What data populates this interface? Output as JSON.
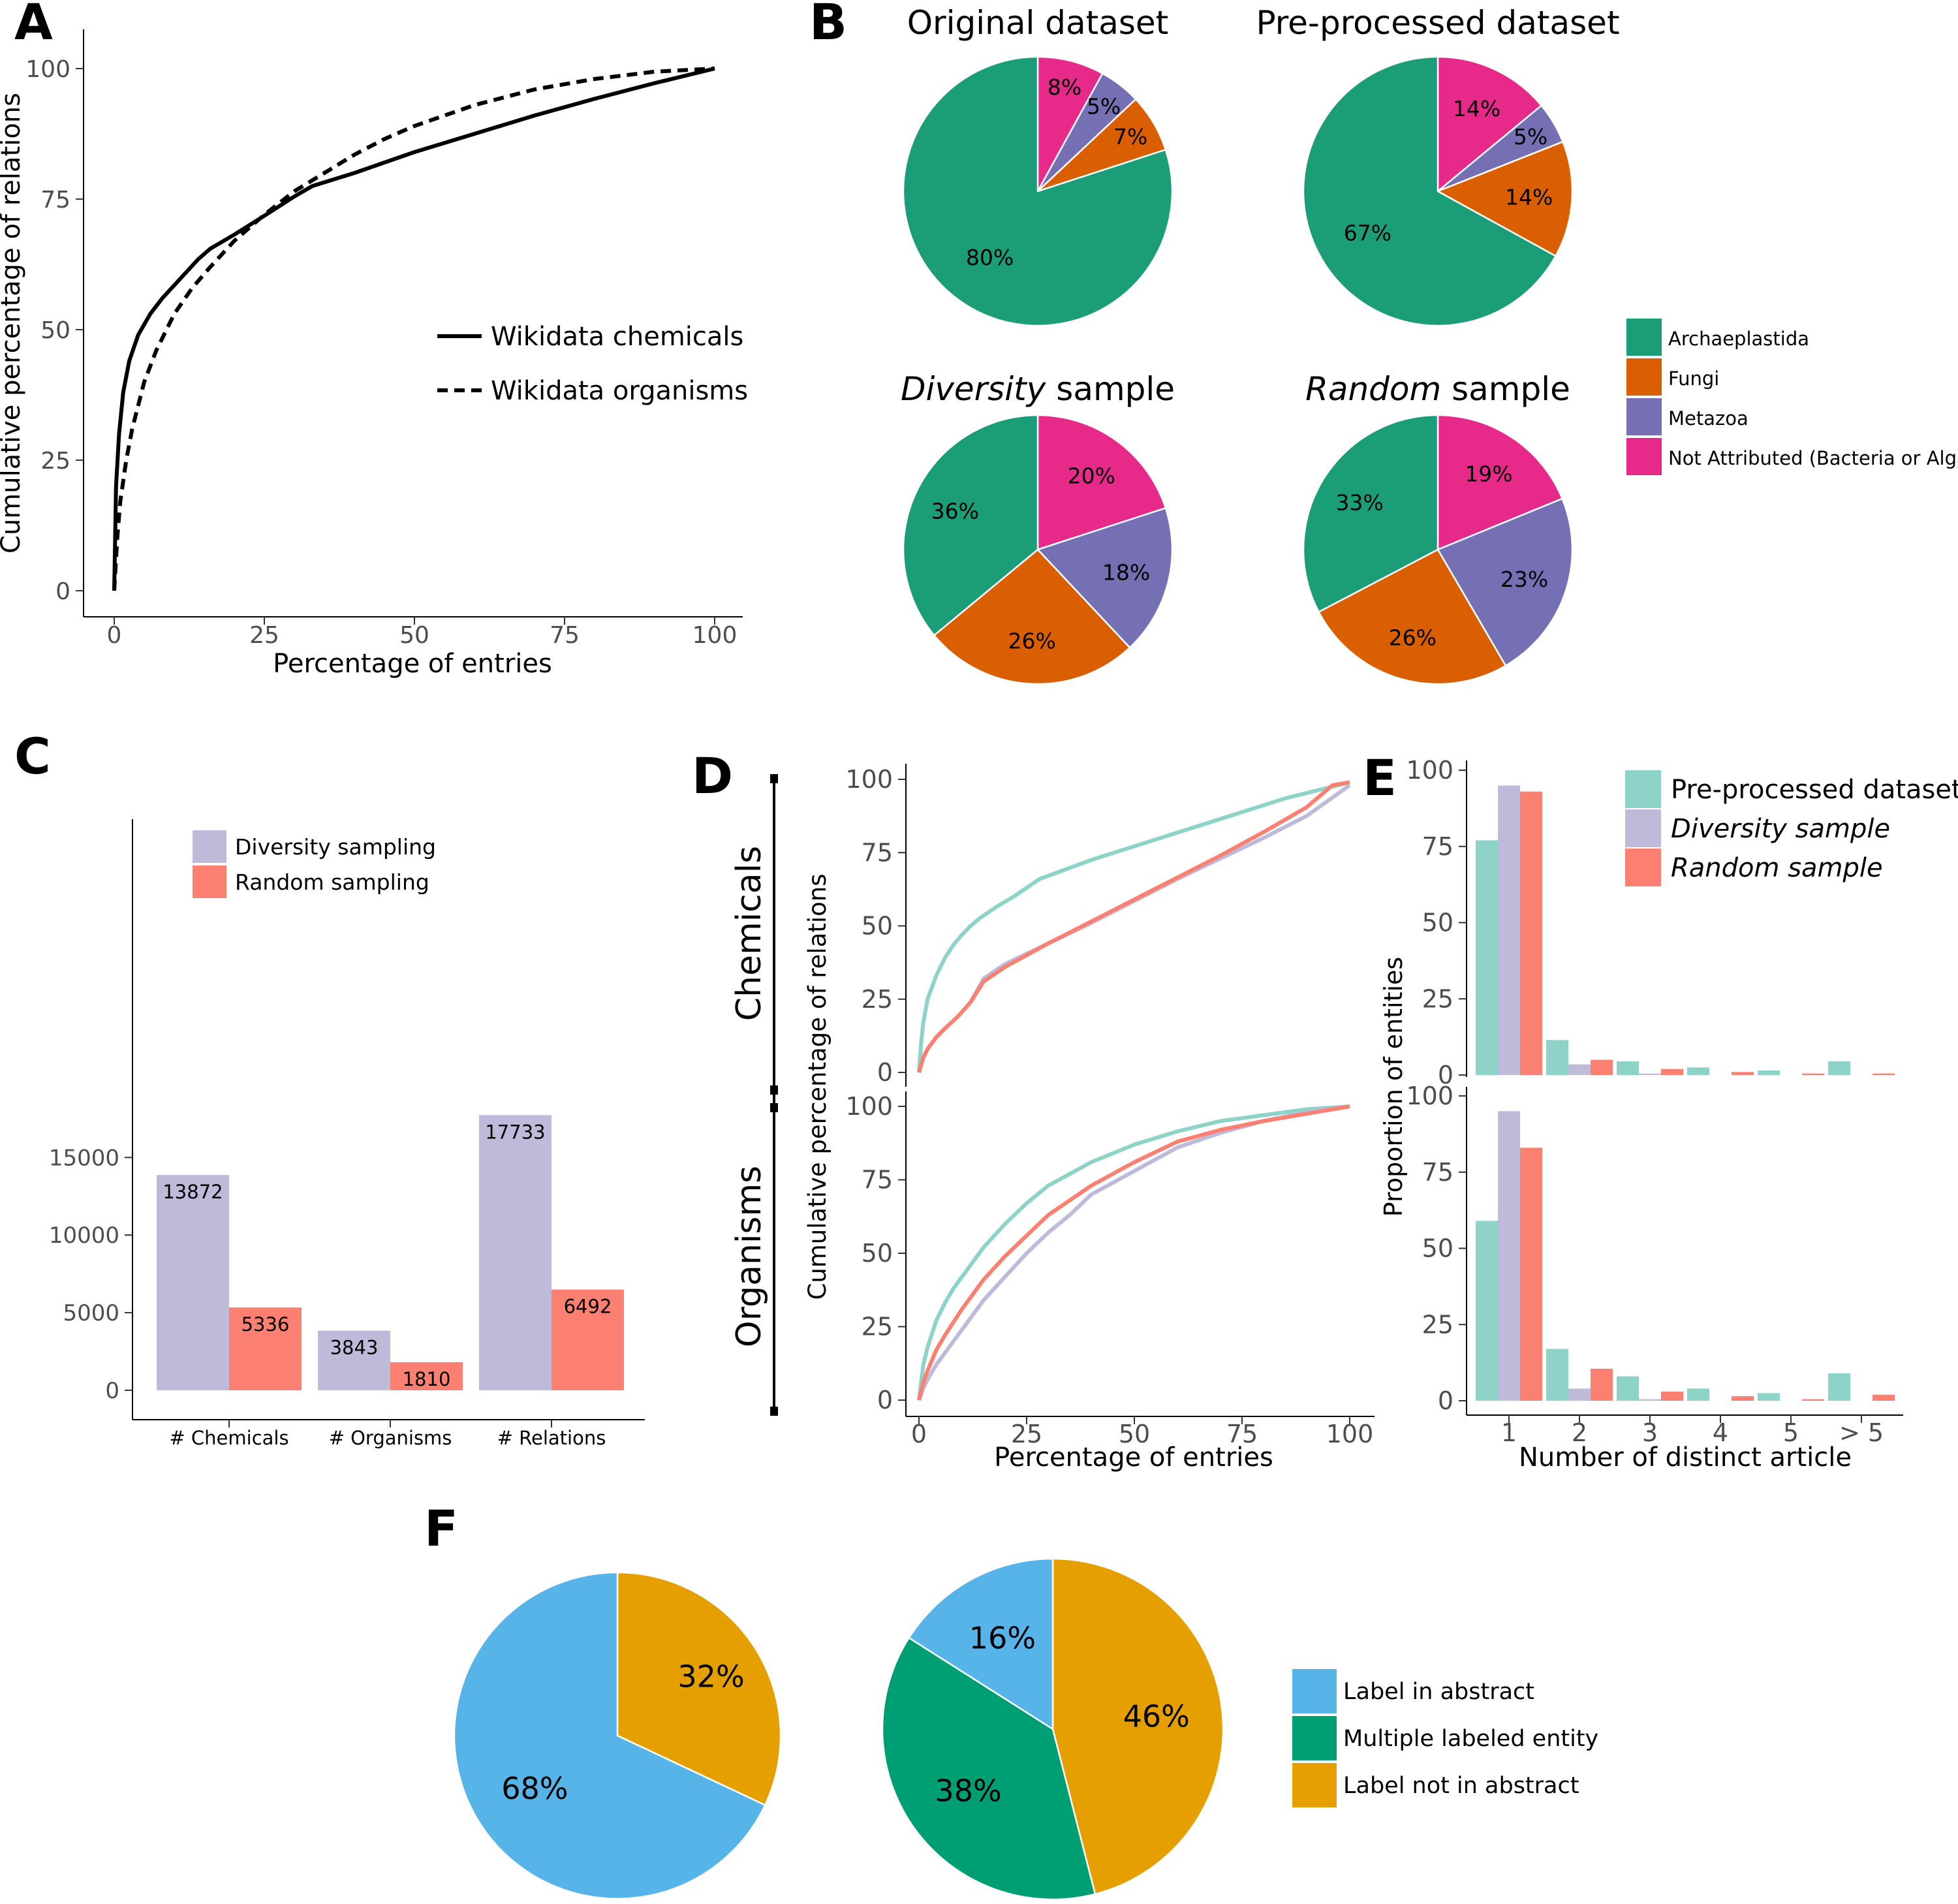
{
  "colors": {
    "archaeplastida": "#1b9e77",
    "fungi": "#d95f02",
    "metazoa": "#7570b3",
    "not_attributed": "#e7298a",
    "diversity": "#bebada",
    "random": "#fb8072",
    "preprocessed": "#8dd3c7",
    "label_in": "#56b4e9",
    "multiple": "#009e73",
    "label_not_in": "#e69f00"
  },
  "panels": {
    "A": "A",
    "B": "B",
    "C": "C",
    "D": "D",
    "E": "E",
    "F": "F"
  },
  "chart_data": [
    {
      "id": "A",
      "type": "line",
      "xlabel": "Percentage of entries",
      "ylabel": "Cumulative percentage of relations",
      "xlim": [
        0,
        100
      ],
      "ylim": [
        0,
        100
      ],
      "x_ticks": [
        "0",
        "25",
        "50",
        "75",
        "100"
      ],
      "y_ticks": [
        "0",
        "25",
        "50",
        "75",
        "100"
      ],
      "legend": [
        "Wikidata chemicals",
        "Wikidata organisms"
      ],
      "series": [
        {
          "name": "Wikidata chemicals",
          "style": "solid",
          "points": [
            [
              0,
              0
            ],
            [
              0.3,
              20
            ],
            [
              0.8,
              30
            ],
            [
              1.5,
              38
            ],
            [
              2.5,
              44
            ],
            [
              4,
              49
            ],
            [
              6,
              53
            ],
            [
              8,
              56
            ],
            [
              10,
              58.5
            ],
            [
              12,
              61
            ],
            [
              14,
              63.5
            ],
            [
              16,
              65.5
            ],
            [
              20,
              68.2
            ],
            [
              25,
              71.8
            ],
            [
              30,
              75.5
            ],
            [
              33,
              77.5
            ],
            [
              40,
              80
            ],
            [
              50,
              84
            ],
            [
              60,
              87.5
            ],
            [
              70,
              91
            ],
            [
              80,
              94.2
            ],
            [
              90,
              97.2
            ],
            [
              100,
              100
            ]
          ]
        },
        {
          "name": "Wikidata organisms",
          "style": "dashed",
          "points": [
            [
              0,
              0
            ],
            [
              0.5,
              10
            ],
            [
              1,
              17
            ],
            [
              2,
              25
            ],
            [
              3,
              31
            ],
            [
              5,
              40
            ],
            [
              7,
              46
            ],
            [
              10,
              53
            ],
            [
              13,
              58
            ],
            [
              16,
              62
            ],
            [
              20,
              67
            ],
            [
              25,
              72
            ],
            [
              30,
              76.5
            ],
            [
              35,
              80
            ],
            [
              40,
              83.5
            ],
            [
              45,
              86.5
            ],
            [
              50,
              89
            ],
            [
              60,
              93
            ],
            [
              70,
              96
            ],
            [
              80,
              98
            ],
            [
              90,
              99.4
            ],
            [
              100,
              100
            ]
          ]
        }
      ]
    },
    {
      "id": "B",
      "type": "pie",
      "legend": [
        "Archaeplastida",
        "Fungi",
        "Metazoa",
        "Not Attributed (Bacteria or Algae)"
      ],
      "pies": [
        {
          "title": "Original dataset",
          "title_italic": "",
          "slices": [
            {
              "label": "Not Attributed",
              "value": 8,
              "text": "8%"
            },
            {
              "label": "Metazoa",
              "value": 5,
              "text": "5%"
            },
            {
              "label": "Fungi",
              "value": 7,
              "text": "7%"
            },
            {
              "label": "Archaeplastida",
              "value": 80,
              "text": "80%"
            }
          ]
        },
        {
          "title": "Pre-processed dataset",
          "title_italic": "",
          "slices": [
            {
              "label": "Not Attributed",
              "value": 14,
              "text": "14%"
            },
            {
              "label": "Metazoa",
              "value": 5,
              "text": "5%"
            },
            {
              "label": "Fungi",
              "value": 14,
              "text": "14%"
            },
            {
              "label": "Archaeplastida",
              "value": 67,
              "text": "67%"
            }
          ]
        },
        {
          "title": " sample",
          "title_italic": "Diversity",
          "slices": [
            {
              "label": "Not Attributed",
              "value": 20,
              "text": "20%"
            },
            {
              "label": "Metazoa",
              "value": 18,
              "text": "18%"
            },
            {
              "label": "Fungi",
              "value": 26,
              "text": "26%"
            },
            {
              "label": "Archaeplastida",
              "value": 36,
              "text": "36%"
            }
          ]
        },
        {
          "title": " sample",
          "title_italic": "Random",
          "slices": [
            {
              "label": "Not Attributed",
              "value": 19,
              "text": "19%"
            },
            {
              "label": "Metazoa",
              "value": 23,
              "text": "23%"
            },
            {
              "label": "Fungi",
              "value": 26,
              "text": "26%"
            },
            {
              "label": "Archaeplastida",
              "value": 33,
              "text": "33%"
            }
          ]
        }
      ]
    },
    {
      "id": "C",
      "type": "bar",
      "categories": [
        "# Chemicals",
        "# Organisms",
        "# Relations"
      ],
      "ylim": [
        0,
        18000
      ],
      "y_ticks": [
        "0",
        "5000",
        "10000",
        "15000"
      ],
      "legend": [
        "Diversity sampling",
        "Random sampling"
      ],
      "series": [
        {
          "name": "Diversity sampling",
          "values": [
            13872,
            3843,
            17733
          ],
          "labels": [
            "13872",
            "3843",
            "17733"
          ]
        },
        {
          "name": "Random sampling",
          "values": [
            5336,
            1810,
            6492
          ],
          "labels": [
            "5336",
            "1810",
            "6492"
          ]
        }
      ]
    },
    {
      "id": "D",
      "type": "line",
      "xlabel": "Percentage of entries",
      "ylabel": "Cumulative percentage of relations",
      "facets": [
        "Chemicals",
        "Organisms"
      ],
      "xlim": [
        0,
        100
      ],
      "ylim": [
        0,
        100
      ],
      "x_ticks": [
        "0",
        "25",
        "50",
        "75",
        "100"
      ],
      "y_ticks": [
        "0",
        "25",
        "50",
        "75",
        "100"
      ],
      "chemicals": [
        {
          "name": "Pre-processed dataset",
          "points": [
            [
              0,
              0
            ],
            [
              0.5,
              10
            ],
            [
              1,
              17
            ],
            [
              2,
              25
            ],
            [
              4,
              33
            ],
            [
              6,
              39
            ],
            [
              8,
              43.5
            ],
            [
              10,
              47
            ],
            [
              12,
              50
            ],
            [
              14,
              52.5
            ],
            [
              18,
              56.5
            ],
            [
              22,
              60
            ],
            [
              25,
              63
            ],
            [
              28,
              66
            ],
            [
              40,
              72.5
            ],
            [
              55,
              79.5
            ],
            [
              70,
              86.5
            ],
            [
              85,
              93.5
            ],
            [
              100,
              99
            ]
          ]
        },
        {
          "name": "Diversity sample",
          "points": [
            [
              0,
              0
            ],
            [
              1,
              5
            ],
            [
              2,
              8
            ],
            [
              4,
              12
            ],
            [
              6,
              15
            ],
            [
              9,
              19
            ],
            [
              12,
              24
            ],
            [
              15,
              32
            ],
            [
              20,
              37
            ],
            [
              30,
              44
            ],
            [
              40,
              51
            ],
            [
              50,
              58.5
            ],
            [
              60,
              66
            ],
            [
              70,
              73
            ],
            [
              80,
              80
            ],
            [
              90,
              87.5
            ],
            [
              100,
              98
            ]
          ]
        },
        {
          "name": "Random sample",
          "points": [
            [
              0,
              0
            ],
            [
              1,
              5
            ],
            [
              2,
              8
            ],
            [
              4,
              12
            ],
            [
              6,
              15
            ],
            [
              9,
              19
            ],
            [
              12,
              24
            ],
            [
              15,
              31
            ],
            [
              20,
              36
            ],
            [
              30,
              44
            ],
            [
              40,
              51.5
            ],
            [
              50,
              59
            ],
            [
              60,
              66.5
            ],
            [
              70,
              74
            ],
            [
              80,
              82
            ],
            [
              90,
              90.5
            ],
            [
              96,
              98
            ],
            [
              100,
              99
            ]
          ]
        }
      ],
      "organisms": [
        {
          "name": "Pre-processed dataset",
          "points": [
            [
              0,
              0
            ],
            [
              1,
              12
            ],
            [
              2,
              18
            ],
            [
              4,
              27
            ],
            [
              6,
              33
            ],
            [
              8,
              38
            ],
            [
              10,
              42
            ],
            [
              15,
              52
            ],
            [
              20,
              60
            ],
            [
              25,
              67
            ],
            [
              30,
              73
            ],
            [
              40,
              81
            ],
            [
              50,
              87
            ],
            [
              60,
              91.5
            ],
            [
              70,
              95
            ],
            [
              80,
              97
            ],
            [
              90,
              99
            ],
            [
              100,
              100
            ]
          ]
        },
        {
          "name": "Diversity sample",
          "points": [
            [
              0,
              0
            ],
            [
              1,
              4
            ],
            [
              2,
              7
            ],
            [
              4,
              12
            ],
            [
              6,
              16
            ],
            [
              10,
              24
            ],
            [
              15,
              34
            ],
            [
              20,
              42
            ],
            [
              25,
              50
            ],
            [
              30,
              57
            ],
            [
              35,
              63
            ],
            [
              40,
              70
            ],
            [
              50,
              78
            ],
            [
              60,
              86
            ],
            [
              70,
              91
            ],
            [
              80,
              95
            ],
            [
              90,
              98
            ],
            [
              100,
              100
            ]
          ]
        },
        {
          "name": "Random sample",
          "points": [
            [
              0,
              0
            ],
            [
              1,
              6
            ],
            [
              2,
              10
            ],
            [
              4,
              17
            ],
            [
              6,
              22
            ],
            [
              10,
              31
            ],
            [
              15,
              41
            ],
            [
              20,
              49
            ],
            [
              25,
              56
            ],
            [
              30,
              63
            ],
            [
              40,
              73
            ],
            [
              50,
              81
            ],
            [
              60,
              88
            ],
            [
              70,
              92
            ],
            [
              80,
              95
            ],
            [
              90,
              97.5
            ],
            [
              100,
              100
            ]
          ]
        }
      ]
    },
    {
      "id": "E",
      "type": "bar",
      "xlabel": "Number of distinct article",
      "ylabel": "Proportion of entities",
      "categories": [
        "1",
        "2",
        "3",
        "4",
        "5",
        "> 5"
      ],
      "ylim": [
        0,
        100
      ],
      "y_ticks": [
        "0",
        "25",
        "50",
        "75",
        "100"
      ],
      "legend": [
        "Pre-processed dataset",
        "Diversity sample",
        "Random sample"
      ],
      "top": [
        {
          "name": "Pre-processed dataset",
          "values": [
            77,
            11.5,
            4.5,
            2.5,
            1.5,
            4.5
          ]
        },
        {
          "name": "Diversity sample",
          "values": [
            95,
            3.5,
            0.5,
            0,
            0,
            0
          ]
        },
        {
          "name": "Random sample",
          "values": [
            93,
            5,
            2,
            1,
            0.5,
            0.5
          ]
        }
      ],
      "bottom": [
        {
          "name": "Pre-processed dataset",
          "values": [
            59,
            17,
            8,
            4,
            2.5,
            9
          ]
        },
        {
          "name": "Diversity sample",
          "values": [
            95,
            4,
            0.5,
            0,
            0,
            0
          ]
        },
        {
          "name": "Random sample",
          "values": [
            83,
            10.5,
            3,
            1.5,
            0.5,
            2
          ]
        }
      ]
    },
    {
      "id": "F",
      "type": "pie",
      "legend": [
        "Label in abstract",
        "Multiple labeled entity",
        "Label not in abstract"
      ],
      "pies": [
        {
          "slices": [
            {
              "label": "Label not in abstract",
              "value": 32,
              "text": "32%"
            },
            {
              "label": "Label in abstract",
              "value": 68,
              "text": "68%"
            }
          ]
        },
        {
          "slices": [
            {
              "label": "Label not in abstract",
              "value": 46,
              "text": "46%"
            },
            {
              "label": "Multiple labeled entity",
              "value": 38,
              "text": "38%"
            },
            {
              "label": "Label in abstract",
              "value": 16,
              "text": "16%"
            }
          ]
        }
      ]
    }
  ]
}
